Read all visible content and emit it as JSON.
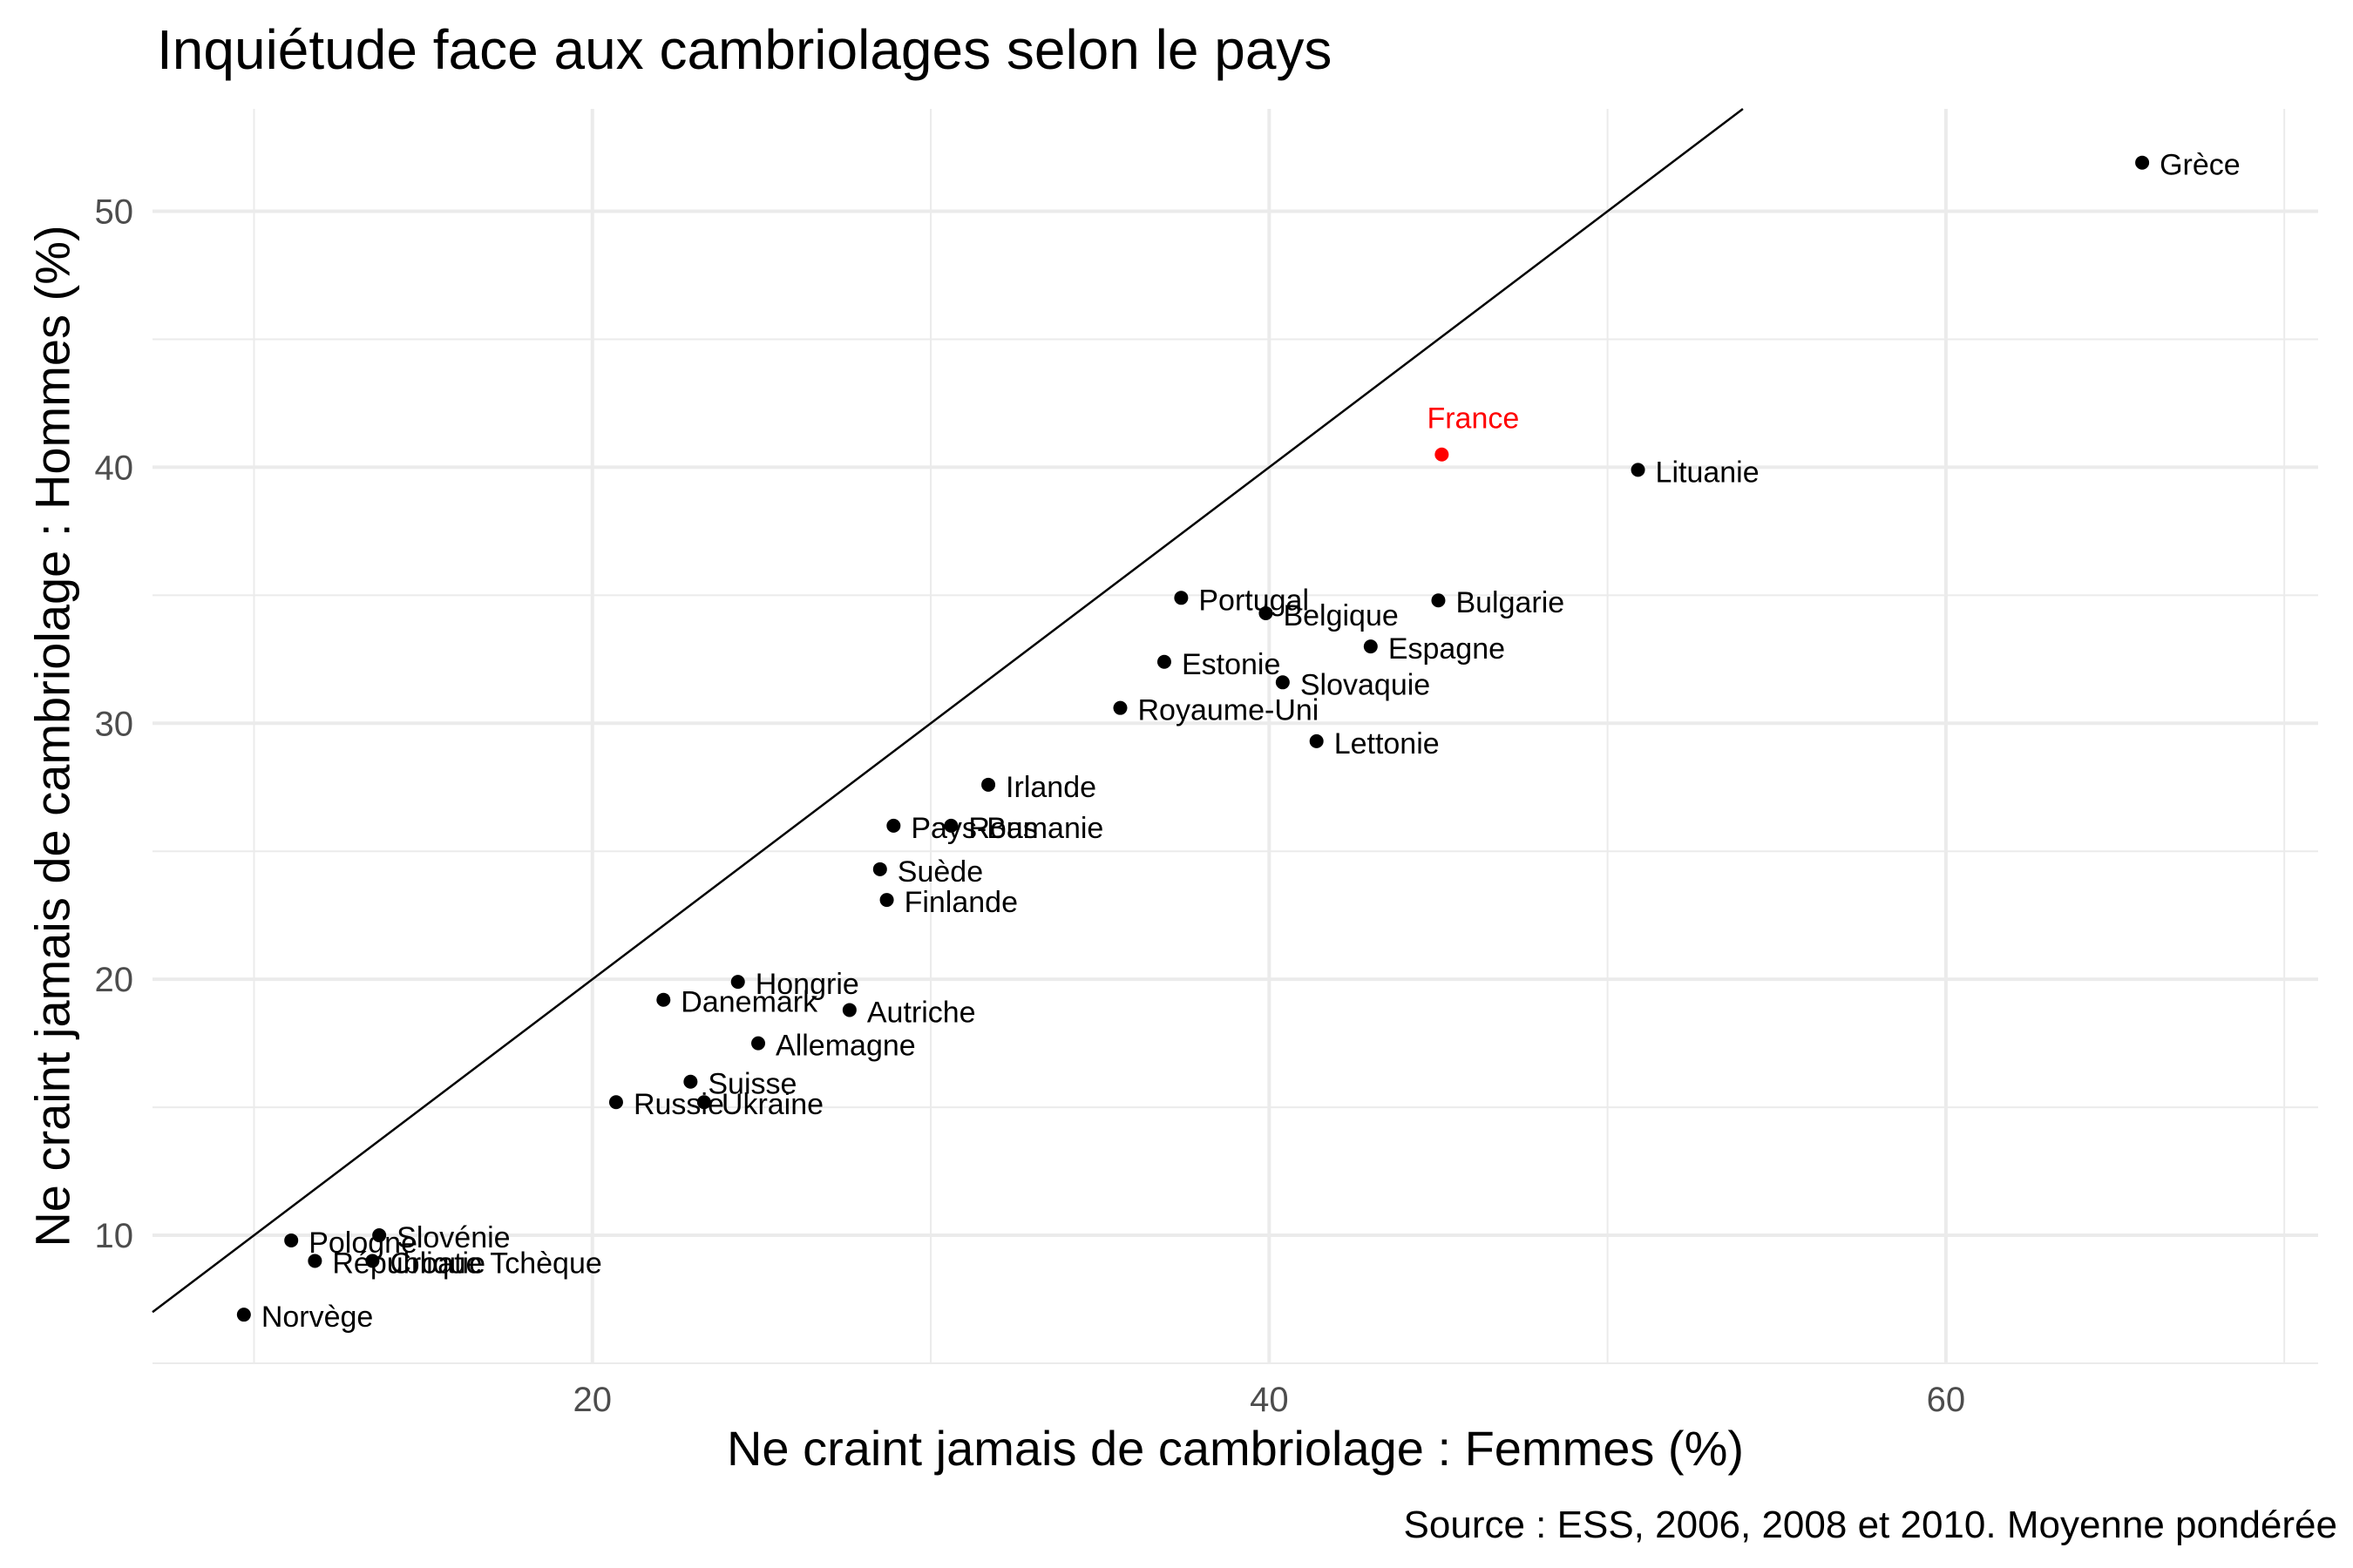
{
  "chart_data": {
    "type": "scatter",
    "title": "Inquiétude face aux cambriolages selon le pays",
    "xlabel": "Ne craint jamais de cambriolage : Femmes (%)",
    "ylabel": "Ne craint jamais de cambriolage : Hommes (%)",
    "caption": "Source : ESS, 2006, 2008 et 2010. Moyenne pondérée",
    "xlim": [
      7,
      71
    ],
    "ylim": [
      5,
      54
    ],
    "x_ticks": [
      20,
      40,
      60
    ],
    "y_ticks": [
      10,
      20,
      30,
      40,
      50
    ],
    "grid": true,
    "reference_line": "y = x",
    "colors": {
      "default": "#000000",
      "highlight": "#ff0000",
      "grid": "#ebebeb",
      "axis_text": "#4d4d4d"
    },
    "points": [
      {
        "label": "Grèce",
        "x": 65.8,
        "y": 51.9
      },
      {
        "label": "France",
        "x": 45.1,
        "y": 40.5,
        "highlight": true
      },
      {
        "label": "Lituanie",
        "x": 50.9,
        "y": 39.9
      },
      {
        "label": "Portugal",
        "x": 37.4,
        "y": 34.9
      },
      {
        "label": "Belgique",
        "x": 39.9,
        "y": 34.3
      },
      {
        "label": "Bulgarie",
        "x": 45.0,
        "y": 34.8
      },
      {
        "label": "Espagne",
        "x": 43.0,
        "y": 33.0
      },
      {
        "label": "Estonie",
        "x": 36.9,
        "y": 32.4
      },
      {
        "label": "Slovaquie",
        "x": 40.4,
        "y": 31.6
      },
      {
        "label": "Royaume-Uni",
        "x": 35.6,
        "y": 30.6
      },
      {
        "label": "Lettonie",
        "x": 41.4,
        "y": 29.3
      },
      {
        "label": "Irlande",
        "x": 31.7,
        "y": 27.6
      },
      {
        "label": "Pays-Bas",
        "x": 28.9,
        "y": 26.0
      },
      {
        "label": "Roumanie",
        "x": 30.6,
        "y": 26.0
      },
      {
        "label": "Suède",
        "x": 28.5,
        "y": 24.3
      },
      {
        "label": "Finlande",
        "x": 28.7,
        "y": 23.1
      },
      {
        "label": "Hongrie",
        "x": 24.3,
        "y": 19.9
      },
      {
        "label": "Danemark",
        "x": 22.1,
        "y": 19.2
      },
      {
        "label": "Autriche",
        "x": 27.6,
        "y": 18.8
      },
      {
        "label": "Allemagne",
        "x": 24.9,
        "y": 17.5
      },
      {
        "label": "Suisse",
        "x": 22.9,
        "y": 16.0
      },
      {
        "label": "Ukraine",
        "x": 23.3,
        "y": 15.2
      },
      {
        "label": "Russie",
        "x": 20.7,
        "y": 15.2
      },
      {
        "label": "Slovénie",
        "x": 13.7,
        "y": 10.0
      },
      {
        "label": "Pologne",
        "x": 11.1,
        "y": 9.8
      },
      {
        "label": "République Tchèque",
        "x": 11.8,
        "y": 9.0
      },
      {
        "label": "Croatie",
        "x": 13.5,
        "y": 9.0
      },
      {
        "label": "Norvège",
        "x": 9.7,
        "y": 6.9
      }
    ]
  }
}
